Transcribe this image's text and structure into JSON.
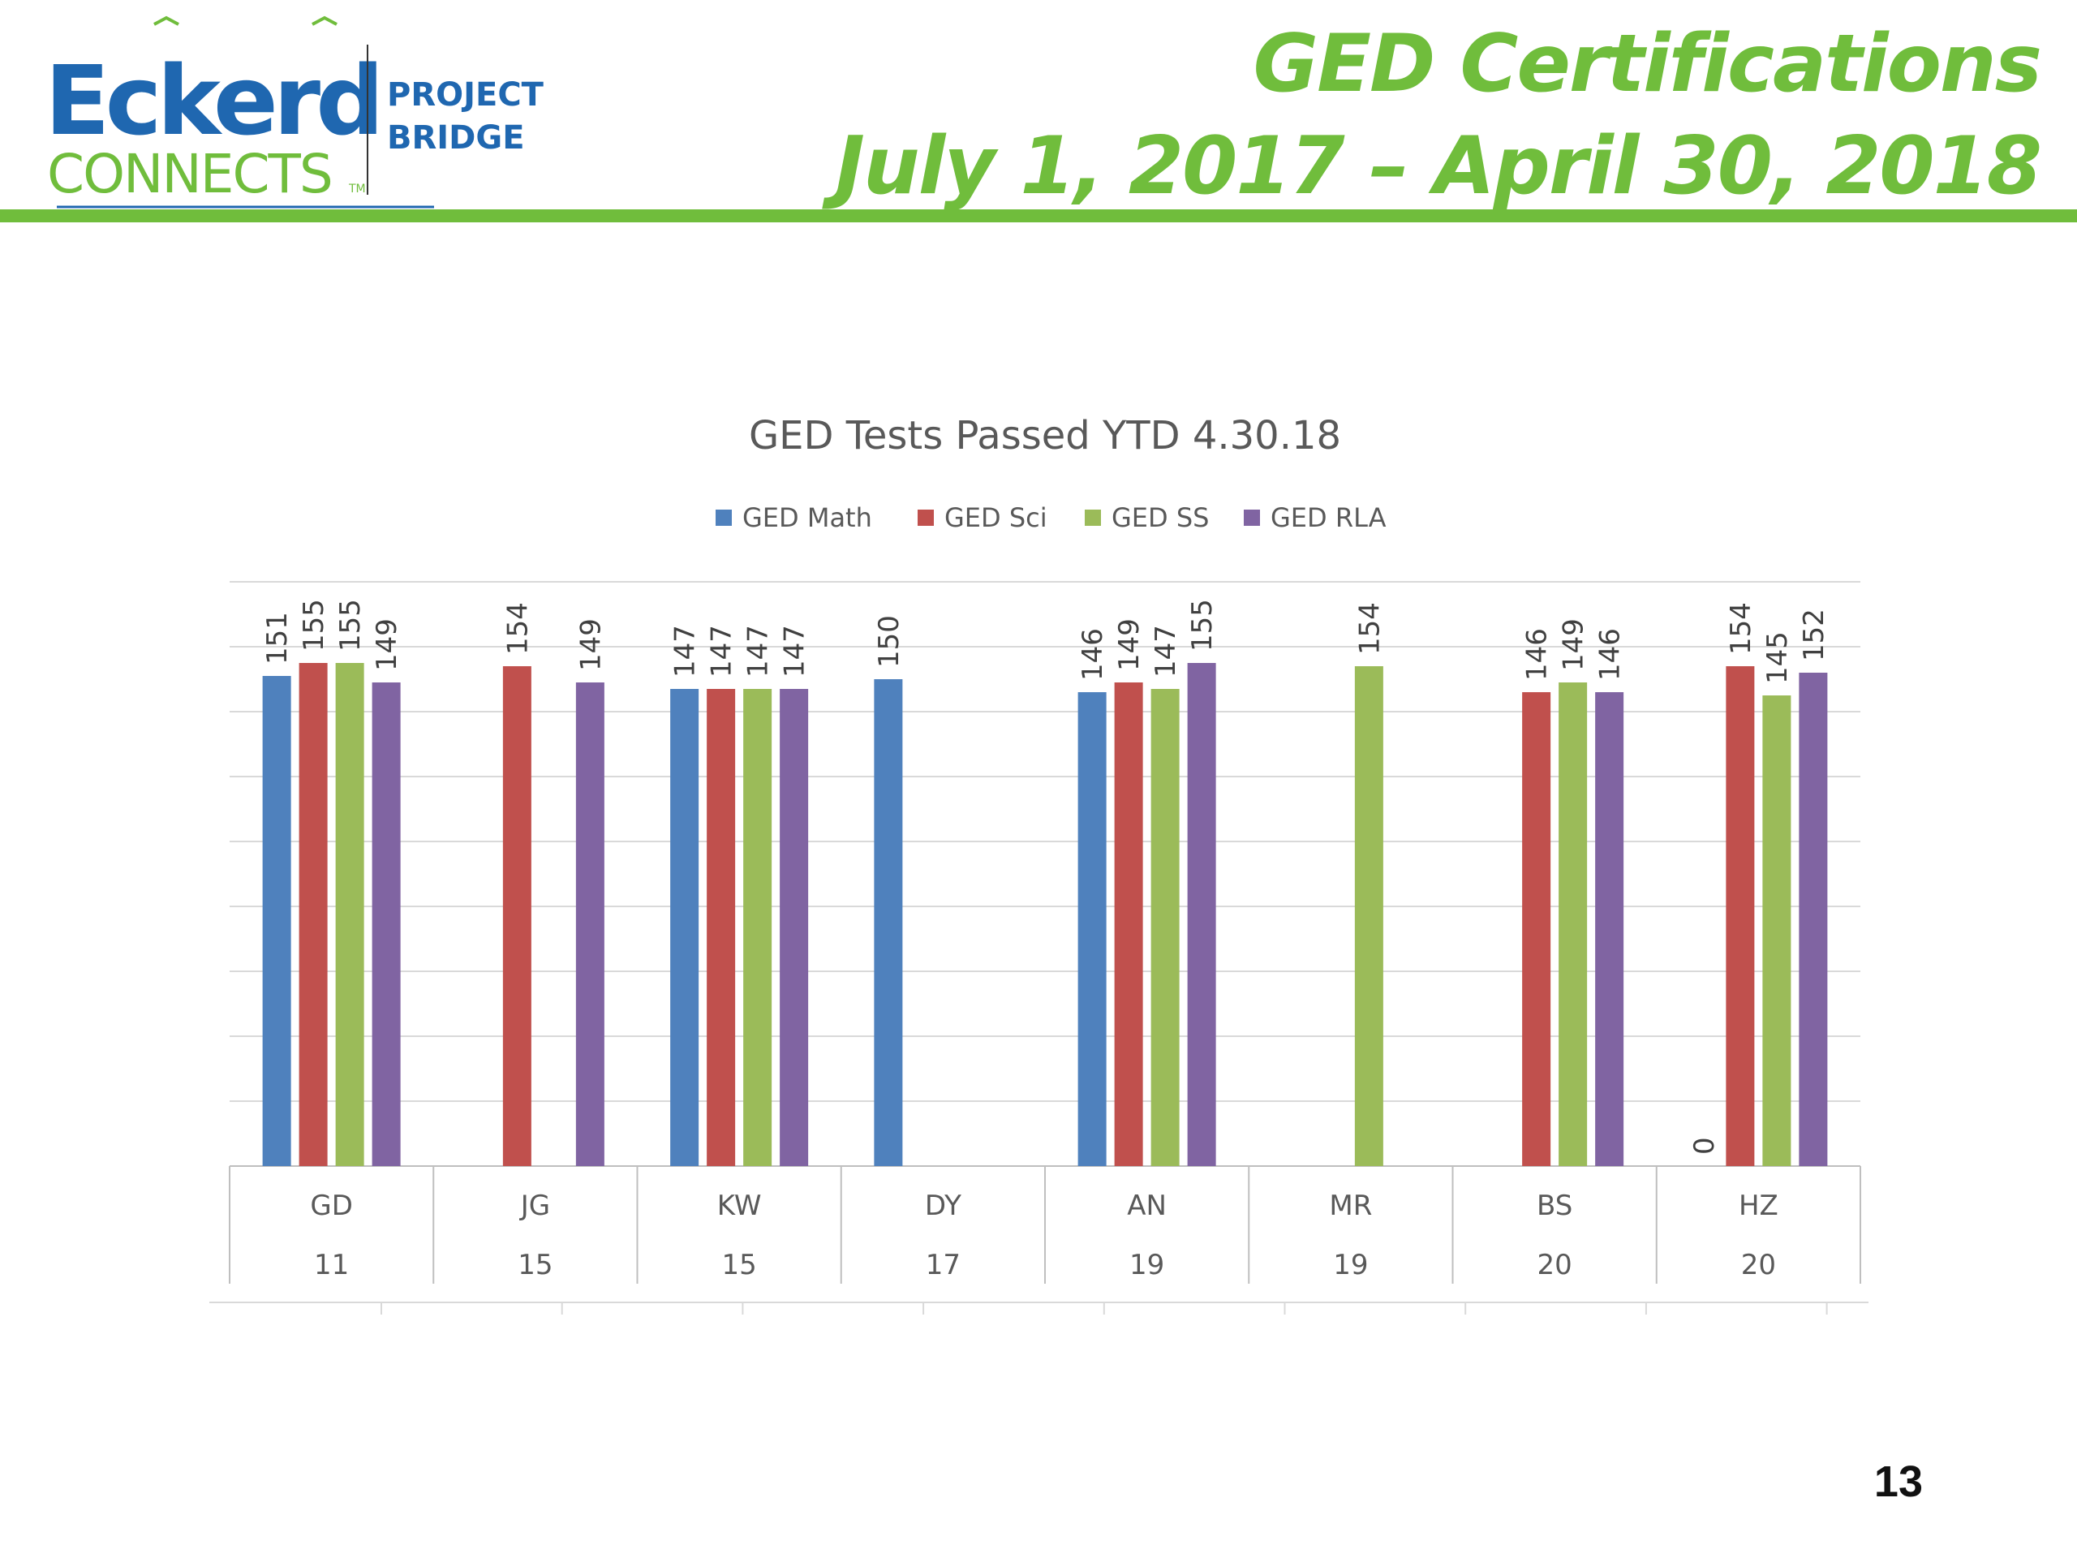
{
  "header": {
    "logo": {
      "brand_top": "Eckerd",
      "brand_bottom": "CONNECTS",
      "trademark": "TM",
      "program_line1": "PROJECT",
      "program_line2": "BRIDGE"
    },
    "title_line1": "GED Certifications",
    "title_line2": "July 1, 2017 – April 30, 2018"
  },
  "colors": {
    "accent_green": "#70bd3c",
    "logo_blue": "#1f67b0",
    "logo_green": "#70bd3c"
  },
  "chart_data": {
    "type": "bar",
    "title": "GED Tests Passed YTD 4.30.18",
    "legend_position": "top",
    "grid": true,
    "ylim": [
      0,
      180
    ],
    "categories": [
      {
        "name": "GD",
        "sub": "11"
      },
      {
        "name": "JG",
        "sub": "15"
      },
      {
        "name": "KW",
        "sub": "15"
      },
      {
        "name": "DY",
        "sub": "17"
      },
      {
        "name": "AN",
        "sub": "19"
      },
      {
        "name": "MR",
        "sub": "19"
      },
      {
        "name": "BS",
        "sub": "20"
      },
      {
        "name": "HZ",
        "sub": "20"
      }
    ],
    "series": [
      {
        "name": "GED Math",
        "color": "#4f81bd",
        "values": [
          151,
          null,
          147,
          150,
          146,
          null,
          null,
          0
        ]
      },
      {
        "name": "GED Sci",
        "color": "#c0504d",
        "values": [
          155,
          154,
          147,
          null,
          149,
          null,
          146,
          154
        ]
      },
      {
        "name": "GED SS",
        "color": "#9bbb59",
        "values": [
          155,
          null,
          147,
          null,
          147,
          154,
          149,
          145
        ]
      },
      {
        "name": "GED RLA",
        "color": "#8064a2",
        "values": [
          149,
          149,
          147,
          null,
          155,
          null,
          146,
          152
        ]
      }
    ]
  },
  "page_number": "13"
}
